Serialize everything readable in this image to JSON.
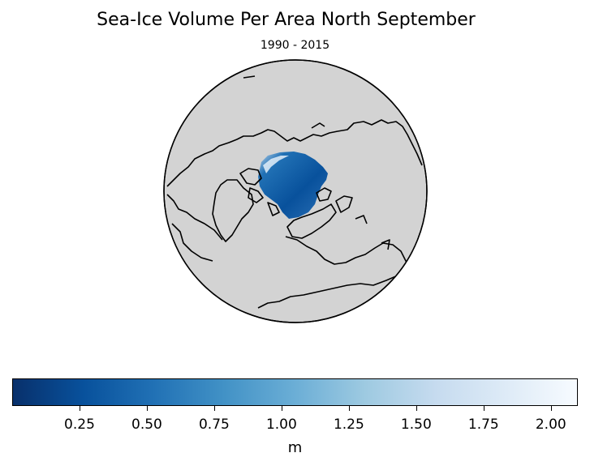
{
  "title": "Sea-Ice Volume Per Area North September",
  "subtitle": "1990 - 2015",
  "map": {
    "projection": "orthographic-north-polar",
    "land_color": "#d3d3d3",
    "coastline_color": "#000000",
    "ice_colormap": "Blues_r"
  },
  "colorbar": {
    "label": "m",
    "min": 0.0,
    "max": 2.1,
    "ticks": [
      "0.25",
      "0.50",
      "0.75",
      "1.00",
      "1.25",
      "1.50",
      "1.75",
      "2.00"
    ],
    "tick_values": [
      0.25,
      0.5,
      0.75,
      1.0,
      1.25,
      1.5,
      1.75,
      2.0
    ],
    "colors": [
      "#08306b",
      "#08519c",
      "#2171b5",
      "#4292c6",
      "#6baed6",
      "#9ecae1",
      "#c6dbef",
      "#deebf7",
      "#f7fbff"
    ]
  }
}
